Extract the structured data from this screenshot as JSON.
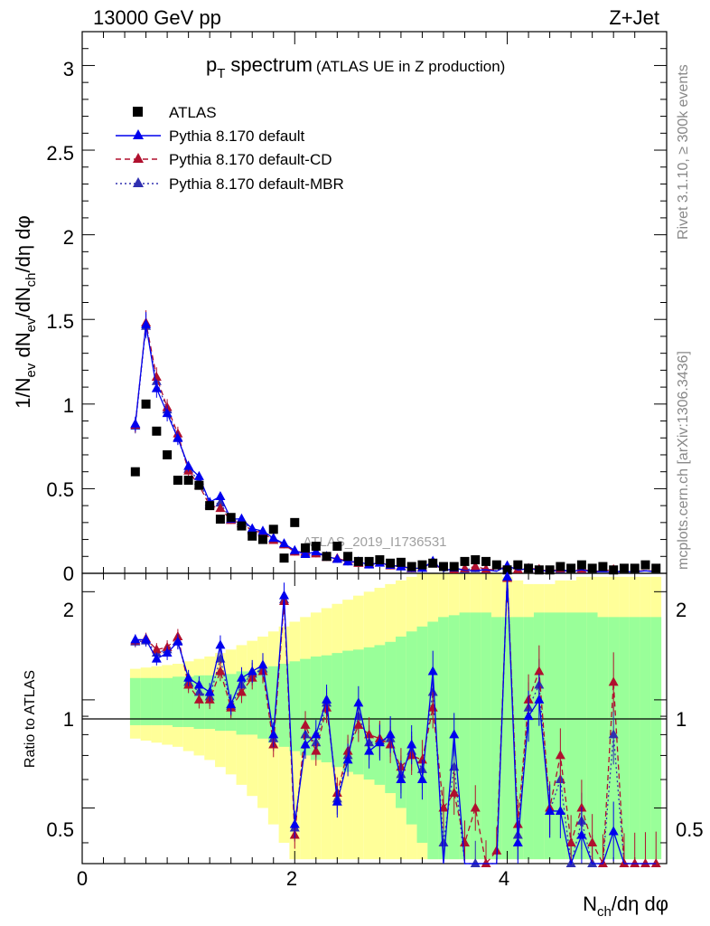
{
  "header": {
    "left": "13000 GeV pp",
    "right": "Z+Jet"
  },
  "side_labels": {
    "rivet": "Rivet 3.1.10, ≥ 300k events",
    "mcplots": "mcplots.cern.ch [arXiv:1306.3436]"
  },
  "chart_data": {
    "type": "scatter",
    "title_main": "p",
    "title_sub": "T",
    "title_word": "spectrum",
    "title_note": "(ATLAS UE in Z production)",
    "watermark": "ATLAS_2019_I1736531",
    "ylabel_parts": [
      "1/N",
      "ev",
      " dN",
      "ev",
      "/dN",
      "ch",
      "/dη dφ"
    ],
    "xlabel_parts": [
      "N",
      "ch",
      "/dη dφ"
    ],
    "ratio_ylabel": "Ratio to ATLAS",
    "xlim": [
      0,
      5.5
    ],
    "ylim": [
      0,
      3.2
    ],
    "ratio_ylim": [
      0.35,
      2.25
    ],
    "x_ticks": [
      "0",
      "2",
      "4"
    ],
    "x_tick_values": [
      0,
      2,
      4
    ],
    "y_ticks": [
      "0",
      "0.5",
      "1",
      "1.5",
      "2",
      "2.5",
      "3"
    ],
    "y_tick_values": [
      0,
      0.5,
      1,
      1.5,
      2,
      2.5,
      3
    ],
    "ratio_ticks": [
      "0.5",
      "1",
      "2"
    ],
    "ratio_tick_values": [
      0.5,
      1,
      2
    ],
    "legend": [
      {
        "label": "ATLAS",
        "color": "#000000",
        "marker": "square",
        "line": "none"
      },
      {
        "label": "Pythia 8.170 default",
        "color": "#0000ee",
        "marker": "triangle",
        "line": "solid"
      },
      {
        "label": "Pythia 8.170 default-CD",
        "color": "#b0102e",
        "marker": "triangle",
        "line": "dashed"
      },
      {
        "label": "Pythia 8.170 default-MBR",
        "color": "#3030b0",
        "marker": "triangle",
        "line": "dotted"
      }
    ],
    "x": [
      0.5,
      0.6,
      0.7,
      0.8,
      0.9,
      1.0,
      1.1,
      1.2,
      1.3,
      1.4,
      1.5,
      1.6,
      1.7,
      1.8,
      1.9,
      2.0,
      2.1,
      2.2,
      2.3,
      2.4,
      2.5,
      2.6,
      2.7,
      2.8,
      2.9,
      3.0,
      3.1,
      3.2,
      3.3,
      3.4,
      3.5,
      3.6,
      3.7,
      3.8,
      3.9,
      4.0,
      4.1,
      4.2,
      4.3,
      4.4,
      4.5,
      4.6,
      4.7,
      4.8,
      4.9,
      5.0,
      5.1,
      5.2,
      5.3,
      5.4
    ],
    "atlas": [
      0.6,
      1.0,
      0.84,
      0.7,
      0.55,
      0.55,
      0.52,
      0.4,
      0.32,
      0.33,
      0.28,
      0.22,
      0.2,
      0.26,
      0.09,
      0.3,
      0.15,
      0.16,
      0.1,
      0.16,
      0.1,
      0.07,
      0.07,
      0.08,
      0.06,
      0.065,
      0.04,
      0.05,
      0.06,
      0.04,
      0.04,
      0.07,
      0.08,
      0.07,
      0.05,
      0.02,
      0.05,
      0.03,
      0.02,
      0.02,
      0.04,
      0.03,
      0.05,
      0.03,
      0.04,
      0.02,
      0.03,
      0.03,
      0.05,
      0.03
    ],
    "atlas_band_green": [
      0.15,
      0.15,
      0.15,
      0.15,
      0.16,
      0.16,
      0.17,
      0.17,
      0.18,
      0.18,
      0.2,
      0.2,
      0.22,
      0.24,
      0.26,
      0.28,
      0.3,
      0.32,
      0.33,
      0.35,
      0.37,
      0.38,
      0.4,
      0.42,
      0.45,
      0.5,
      0.55,
      0.6,
      0.65,
      0.7,
      0.72,
      0.75,
      0.75,
      0.75,
      0.7,
      0.7,
      0.7,
      0.7,
      0.75,
      0.75,
      0.75,
      0.75,
      0.75,
      0.75,
      0.7,
      0.7,
      0.7,
      0.7,
      0.7,
      0.7
    ],
    "atlas_band_yellow": [
      0.22,
      0.23,
      0.24,
      0.25,
      0.26,
      0.28,
      0.3,
      0.32,
      0.35,
      0.38,
      0.42,
      0.46,
      0.5,
      0.55,
      0.6,
      0.65,
      0.7,
      0.75,
      0.8,
      0.85,
      0.9,
      0.95,
      1.0,
      1.05,
      1.1,
      1.15,
      1.2,
      1.25,
      1.25,
      1.25,
      1.25,
      1.25,
      1.25,
      1.25,
      1.25,
      1.2,
      1.15,
      1.1,
      1.1,
      1.1,
      1.15,
      1.15,
      1.2,
      1.2,
      1.2,
      1.2,
      1.2,
      1.2,
      1.2,
      1.2
    ],
    "ratio_default": [
      1.47,
      1.47,
      1.3,
      1.35,
      1.45,
      1.15,
      1.1,
      1.05,
      1.42,
      0.97,
      1.15,
      1.2,
      1.25,
      0.8,
      1.95,
      0.45,
      0.75,
      0.8,
      1.0,
      0.52,
      0.68,
      0.98,
      0.72,
      0.76,
      0.8,
      0.6,
      0.75,
      0.6,
      1.2,
      0.3,
      0.8,
      0.25,
      0.2,
      0.3,
      0.25,
      2.2,
      0.4,
      0.9,
      1.0,
      0.49,
      0.49,
      0.3,
      0.42,
      0.3,
      0.25,
      0.43,
      0.3,
      0.3,
      0.3,
      0.3
    ],
    "ratio_cd": [
      1.46,
      1.48,
      1.38,
      1.4,
      1.5,
      1.1,
      1.0,
      1.0,
      1.2,
      0.95,
      1.05,
      1.15,
      1.2,
      0.75,
      1.88,
      0.42,
      0.85,
      0.72,
      0.95,
      0.55,
      0.72,
      0.85,
      0.8,
      0.78,
      0.75,
      0.65,
      0.7,
      0.68,
      0.95,
      0.5,
      0.55,
      0.4,
      0.5,
      0.35,
      0.38,
      2.18,
      0.45,
      1.0,
      1.2,
      0.5,
      0.7,
      0.4,
      0.5,
      0.4,
      0.35,
      1.12,
      0.35,
      0.35,
      0.35,
      0.35
    ],
    "ratio_mbr": [
      1.45,
      1.46,
      1.35,
      1.38,
      1.46,
      1.12,
      1.05,
      1.02,
      1.3,
      0.96,
      1.1,
      1.18,
      1.22,
      0.78,
      1.9,
      0.44,
      0.8,
      0.76,
      0.98,
      0.53,
      0.7,
      0.9,
      0.76,
      0.77,
      0.78,
      0.62,
      0.72,
      0.64,
      1.05,
      0.4,
      0.65,
      0.32,
      0.35,
      0.32,
      0.3,
      2.19,
      0.42,
      0.95,
      1.1,
      0.49,
      0.6,
      0.35,
      0.46,
      0.35,
      0.3,
      0.8,
      0.32,
      0.32,
      0.32,
      0.32
    ]
  }
}
